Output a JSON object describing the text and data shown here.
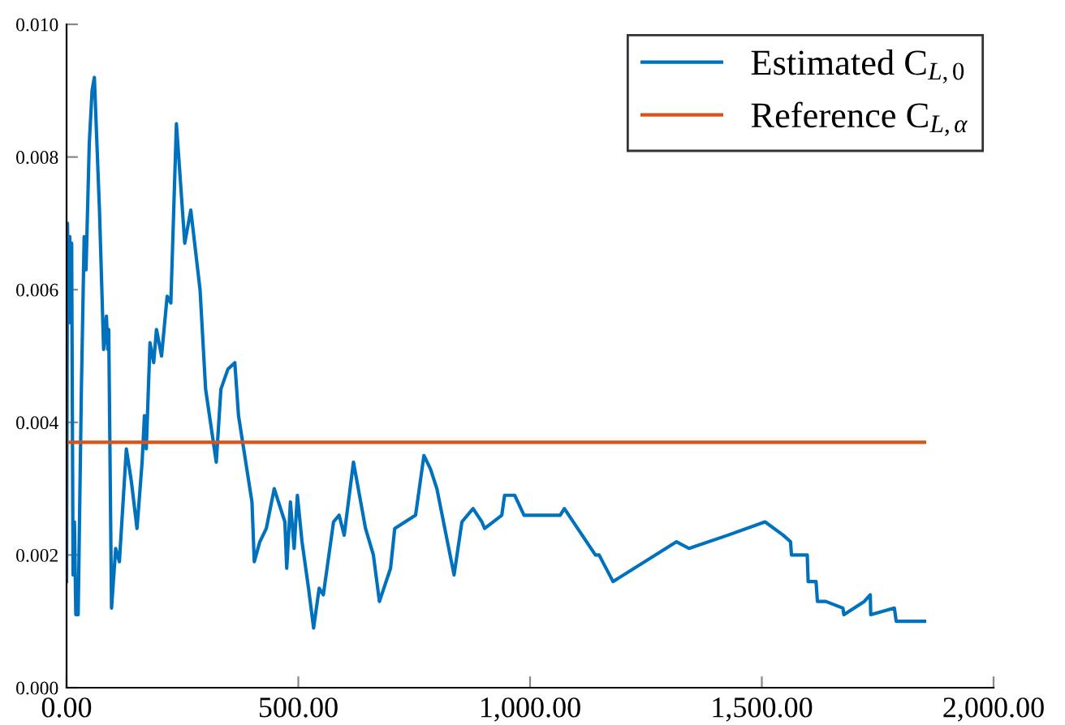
{
  "chart_data": {
    "type": "line",
    "xlim": [
      0,
      2000
    ],
    "xticks": [
      {
        "value": 0,
        "label": "0.00"
      },
      {
        "value": 500,
        "label": "500.00"
      },
      {
        "value": 1000,
        "label": "1,000.00"
      },
      {
        "value": 1500,
        "label": "1,500.00"
      },
      {
        "value": 2000,
        "label": "2,000.00"
      }
    ],
    "ylim": [
      0,
      0.01
    ],
    "yticks": [
      {
        "value": 0,
        "label": "0.000"
      },
      {
        "value": 0.002,
        "label": "0.002"
      },
      {
        "value": 0.004,
        "label": "0.004"
      },
      {
        "value": 0.006,
        "label": "0.006"
      },
      {
        "value": 0.008,
        "label": "0.008"
      },
      {
        "value": 0.01,
        "label": "0.010"
      }
    ],
    "grid": false,
    "legend": "top right",
    "marker": "none",
    "line_style": "solid",
    "series": [
      {
        "name": "Estimated C$_{L,0}$",
        "color": "#0072bd",
        "x": [
          0,
          2,
          5,
          7,
          9,
          11,
          14,
          17,
          20,
          25,
          32,
          38,
          42,
          49,
          55,
          60,
          71,
          80,
          86,
          89,
          91,
          97,
          106,
          114,
          129,
          140,
          152,
          163,
          168,
          172,
          180,
          188,
          194,
          205,
          217,
          225,
          237,
          255,
          268,
          288,
          300,
          323,
          333,
          348,
          363,
          371,
          400,
          405,
          417,
          431,
          448,
          471,
          475,
          483,
          491,
          498,
          508,
          522,
          533,
          545,
          554,
          576,
          588,
          599,
          619,
          645,
          662,
          675,
          699,
          708,
          753,
          771,
          785,
          799,
          836,
          853,
          877,
          896,
          902,
          939,
          945,
          967,
          987,
          996,
          1065,
          1074,
          1141,
          1149,
          1179,
          1316,
          1343,
          1427,
          1507,
          1546,
          1562,
          1564,
          1598,
          1600,
          1617,
          1620,
          1638,
          1675,
          1677,
          1721,
          1734,
          1735,
          1786,
          1790,
          1851
        ],
        "values": [
          0.0016,
          0.007,
          0.0055,
          0.0068,
          0.0055,
          0.0067,
          0.0017,
          0.0025,
          0.0011,
          0.0011,
          0.0045,
          0.0068,
          0.0063,
          0.0082,
          0.009,
          0.0092,
          0.0072,
          0.0051,
          0.0056,
          0.0051,
          0.0054,
          0.0012,
          0.0021,
          0.0019,
          0.0036,
          0.0031,
          0.0024,
          0.0034,
          0.0041,
          0.0036,
          0.0052,
          0.0049,
          0.0054,
          0.005,
          0.0059,
          0.0058,
          0.0085,
          0.0067,
          0.0072,
          0.006,
          0.0045,
          0.0034,
          0.0045,
          0.0048,
          0.0049,
          0.0041,
          0.0028,
          0.0019,
          0.0022,
          0.0024,
          0.003,
          0.0025,
          0.0018,
          0.0028,
          0.0021,
          0.0029,
          0.0022,
          0.0015,
          0.0009,
          0.0015,
          0.0014,
          0.0025,
          0.0026,
          0.0023,
          0.0034,
          0.0024,
          0.002,
          0.0013,
          0.0018,
          0.0024,
          0.0026,
          0.0035,
          0.0033,
          0.003,
          0.0017,
          0.0025,
          0.0027,
          0.0025,
          0.0024,
          0.0026,
          0.0029,
          0.0029,
          0.0026,
          0.0026,
          0.0026,
          0.0027,
          0.002,
          0.002,
          0.0016,
          0.0022,
          0.0021,
          0.0023,
          0.0025,
          0.0023,
          0.0022,
          0.002,
          0.002,
          0.0016,
          0.0016,
          0.0013,
          0.0013,
          0.0012,
          0.0011,
          0.0013,
          0.0014,
          0.0011,
          0.0012,
          0.001,
          0.001
        ]
      },
      {
        "name": "Reference C$_{L,α}$",
        "color": "#d95319",
        "x": [
          0,
          1851
        ],
        "values": [
          0.0037,
          0.0037
        ]
      }
    ]
  }
}
